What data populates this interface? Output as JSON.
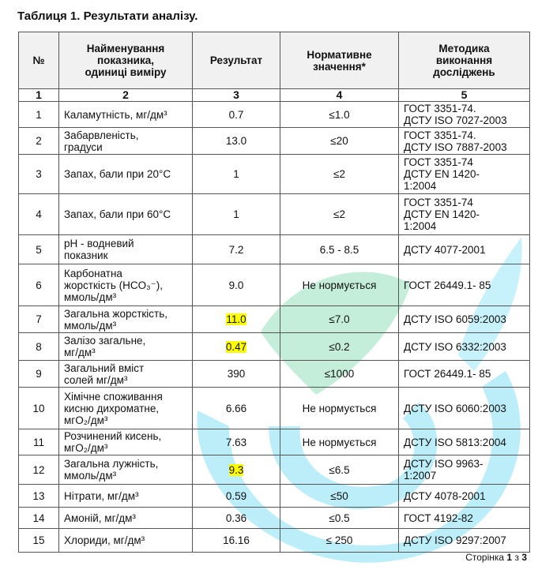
{
  "title": "Таблиця 1. Результати аналізу.",
  "headers": [
    "№",
    "Найменування\nпоказника,\nодиниці виміру",
    "Результат",
    "Нормативне\nзначення*",
    "Методика\nвиконання\nдосліджень"
  ],
  "column_numbers": [
    "1",
    "2",
    "3",
    "4",
    "5"
  ],
  "rows": [
    {
      "no": "1",
      "name": "Каламутність, мг/дм³",
      "result": "0.7",
      "norm": "≤1.0",
      "method": "ГОСТ  3351-74.\nДСТУ ISO 7027-2003",
      "highlight": false
    },
    {
      "no": "2",
      "name": "Забарвленість,\nградуси",
      "result": "13.0",
      "norm": "≤20",
      "method": "ГОСТ  3351-74.\nДСТУ ISO 7887-2003",
      "highlight": false
    },
    {
      "no": "3",
      "name": "Запах, бали при 20°С",
      "result": "1",
      "norm": "≤2",
      "method": "ГОСТ  3351-74\nДСТУ  EN  1420-\n1:2004",
      "highlight": false
    },
    {
      "no": "4",
      "name": "Запах, бали при 60°С",
      "result": "1",
      "norm": "≤2",
      "method": "ГОСТ  3351-74\nДСТУ  EN  1420-\n1:2004",
      "highlight": false
    },
    {
      "no": "5",
      "name": "pH - водневий\nпоказник",
      "result": "7.2",
      "norm": "6.5 - 8.5",
      "method": "ДСТУ 4077-2001",
      "highlight": false
    },
    {
      "no": "6",
      "name": "Карбонатна\nжорсткість (HCO₃⁻),\nммоль/дм³",
      "result": "9.0",
      "norm": "Не нормується",
      "method": "ГОСТ 26449.1- 85",
      "highlight": false
    },
    {
      "no": "7",
      "name": "Загальна жорсткість,\nммоль/дм³",
      "result": "11.0",
      "norm": "≤7.0",
      "method": "ДСТУ ISO 6059:2003",
      "highlight": true
    },
    {
      "no": "8",
      "name": "Залізо загальне,\nмг/дм³",
      "result": "0.47",
      "norm": "≤0.2",
      "method": "ДСТУ ISO 6332:2003",
      "highlight": true
    },
    {
      "no": "9",
      "name": "Загальний вміст\nсолей мг/дм³",
      "result": "390",
      "norm": "≤1000",
      "method": "ГОСТ 26449.1- 85",
      "highlight": false
    },
    {
      "no": "10",
      "name": "Хімічне споживання\nкисню дихроматне,\nмгО₂/дм³",
      "result": "6.66",
      "norm": "Не нормується",
      "method": "ДСТУ ISO 6060:2003",
      "highlight": false
    },
    {
      "no": "11",
      "name": "Розчинений кисень,\nмгО₂/дм³",
      "result": "7.63",
      "norm": "Не нормується",
      "method": "ДСТУ ISO 5813:2004",
      "highlight": false
    },
    {
      "no": "12",
      "name": "Загальна лужність,\nммоль/дм³",
      "result": "9.3",
      "norm": "≤6.5",
      "method": "ДСТУ ISO 9963-\n1:2007",
      "highlight": true
    },
    {
      "no": "13",
      "name": "Нітрати, мг/дм³",
      "result": "0.59",
      "norm": "≤50",
      "method": "ДСТУ 4078-2001",
      "highlight": false
    },
    {
      "no": "14",
      "name": "Амоній, мг/дм³",
      "result": "0.36",
      "norm": "≤0.5",
      "method": "ГОСТ 4192-82",
      "highlight": false
    },
    {
      "no": "15",
      "name": "Хлориди, мг/дм³",
      "result": "16.16",
      "norm": "≤ 250",
      "method": "ДСТУ ISO 9297:2007",
      "highlight": false
    }
  ],
  "footer": {
    "prefix": "Сторінка",
    "page": "1",
    "sep": "з",
    "total": "3"
  },
  "colors": {
    "highlight": "#ffff00",
    "watermark_blue": "#7fdcf5",
    "watermark_green": "#9fe0bd"
  }
}
